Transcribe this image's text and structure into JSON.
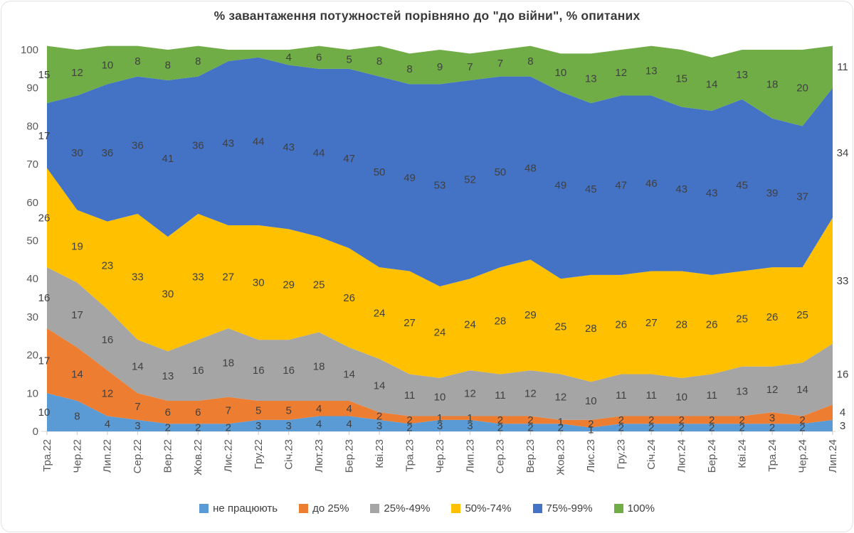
{
  "chart_data": {
    "type": "area",
    "stacked": true,
    "title": "% завантаження потужностей порівняно до \"до війни\", % опитаних",
    "x": [
      "Тра.22",
      "Чер.22",
      "Лип.22",
      "Сер.22",
      "Вер.22",
      "Жов.22",
      "Лис.22",
      "Гру.22",
      "Січ.23",
      "Лют.23",
      "Бер.23",
      "Кві.23",
      "Тра.23",
      "Чер.23",
      "Лип.23",
      "Сер.23",
      "Вер.23",
      "Жов.23",
      "Лис.23",
      "Гру.23",
      "Січ.24",
      "Лют.24",
      "Бер.24",
      "Кві.24",
      "Тра.24",
      "Чер.24",
      "Лип.24"
    ],
    "series": [
      {
        "name": "не працюють",
        "color": "#5B9BD5",
        "values": [
          10,
          8,
          4,
          3,
          2,
          2,
          2,
          3,
          3,
          4,
          4,
          3,
          2,
          3,
          3,
          2,
          2,
          2,
          1,
          2,
          2,
          2,
          2,
          2,
          2,
          2,
          3
        ]
      },
      {
        "name": "до 25%",
        "color": "#ED7D31",
        "values": [
          17,
          14,
          12,
          7,
          6,
          6,
          7,
          5,
          5,
          4,
          4,
          2,
          2,
          1,
          1,
          2,
          2,
          1,
          2,
          2,
          2,
          2,
          2,
          2,
          3,
          2,
          4
        ]
      },
      {
        "name": "25%-49%",
        "color": "#A5A5A5",
        "values": [
          16,
          17,
          16,
          14,
          13,
          16,
          18,
          16,
          16,
          18,
          14,
          14,
          11,
          10,
          12,
          11,
          12,
          12,
          10,
          11,
          11,
          10,
          11,
          13,
          12,
          14,
          16
        ]
      },
      {
        "name": "50%-74%",
        "color": "#FFC000",
        "values": [
          26,
          19,
          23,
          33,
          30,
          33,
          27,
          30,
          29,
          25,
          26,
          24,
          27,
          24,
          24,
          28,
          29,
          25,
          28,
          26,
          27,
          28,
          26,
          25,
          26,
          25,
          33
        ]
      },
      {
        "name": "75%-99%",
        "color": "#4472C4",
        "values": [
          17,
          30,
          36,
          36,
          41,
          36,
          43,
          44,
          43,
          44,
          47,
          50,
          49,
          53,
          52,
          50,
          48,
          49,
          45,
          47,
          46,
          43,
          43,
          45,
          39,
          37,
          34
        ]
      },
      {
        "name": "100%",
        "color": "#70AD47",
        "values": [
          15,
          12,
          10,
          8,
          8,
          8,
          3,
          2,
          4,
          6,
          5,
          8,
          8,
          9,
          7,
          7,
          8,
          10,
          13,
          12,
          13,
          15,
          14,
          13,
          18,
          20,
          11
        ],
        "unlabeled_indices": [
          6,
          7
        ]
      }
    ],
    "y_axis": {
      "min": 0,
      "max": 100,
      "ticks": [
        0,
        10,
        20,
        30,
        40,
        50,
        60,
        70,
        80,
        90,
        100
      ]
    },
    "x_axis": {
      "label_rotation": -90
    },
    "grid": false,
    "legend_position": "bottom",
    "label_color": "#404040",
    "axis_text_color": "#595959"
  }
}
